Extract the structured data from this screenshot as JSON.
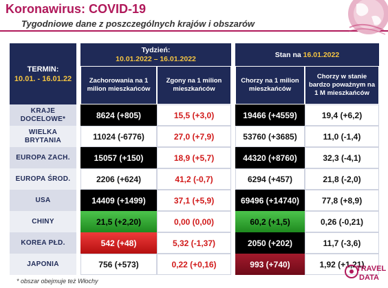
{
  "header": {
    "title": "Koronawirus: COVID-19",
    "subtitle": "Tygodniowe dane z poszczególnych krajów i obszarów"
  },
  "table": {
    "termin_label": "TERMIN:",
    "termin_range": "10.01. - 16.01.22",
    "week_label": "Tydzień:",
    "week_range": "10.01.2022 – 16.01.2022",
    "stan_prefix": "Stan na ",
    "stan_date": "16.01.2022",
    "columns": [
      "Zachorowania na 1 milion mieszkańców",
      "Zgony na 1 milion mieszkańców",
      "Chorzy na 1 milion mieszkańców",
      "Chorzy w stanie bardzo poważnym na 1 M mieszkańców"
    ],
    "rows": [
      {
        "label_1": "KRAJE",
        "label_2": "DOCELOWE*",
        "cases": "8624 (+805)",
        "deaths": "15,5 (+3,0)",
        "sick": "19466 (+4559)",
        "severe": "19,4 (+6,2)"
      },
      {
        "label_1": "WIELKA",
        "label_2": "BRYTANIA",
        "cases": "11024 (-6776)",
        "deaths": "27,0 (+7,9)",
        "sick": "53760 (+3685)",
        "severe": "11,0 (-1,4)"
      },
      {
        "label_1": "EUROPA ZACH.",
        "label_2": "",
        "cases": "15057 (+150)",
        "deaths": "18,9 (+5,7)",
        "sick": "44320 (+8760)",
        "severe": "32,3 (-4,1)"
      },
      {
        "label_1": "EUROPA ŚROD.",
        "label_2": "",
        "cases": "2206 (+624)",
        "deaths": "41,2 (-0,7)",
        "sick": "6294 (+457)",
        "severe": "21,8 (-2,0)"
      },
      {
        "label_1": "USA",
        "label_2": "",
        "cases": "14409 (+1499)",
        "deaths": "37,1 (+5,9)",
        "sick": "69496 (+14740)",
        "severe": "77,8 (+8,9)"
      },
      {
        "label_1": "CHINY",
        "label_2": "",
        "cases": "21,5 (+2,20)",
        "deaths": "0,00 (0,00)",
        "sick": "60,2 (+1,5)",
        "severe": "0,26 (-0,21)"
      },
      {
        "label_1": "KOREA PŁD.",
        "label_2": "",
        "cases": "542 (+48)",
        "deaths": "5,32 (-1,37)",
        "sick": "2050 (+202)",
        "severe": "11,7 (-3,6)"
      },
      {
        "label_1": "JAPONIA",
        "label_2": "",
        "cases": "756 (+573)",
        "deaths": "0,22 (+0,16)",
        "sick": "993 (+740)",
        "severe": "1,92 (+1,21)"
      }
    ]
  },
  "footnote": "* obszar obejmuje też Włochy",
  "logo": {
    "line1": "TRAVEL",
    "line2": "DATA"
  },
  "colors": {
    "brand": "#b0185a",
    "navy": "#1f2a57",
    "highlight_yellow": "#f5c542",
    "green": "#2b9a2b",
    "red": "#d11a1a",
    "maroon": "#8a1020",
    "black": "#000000"
  }
}
